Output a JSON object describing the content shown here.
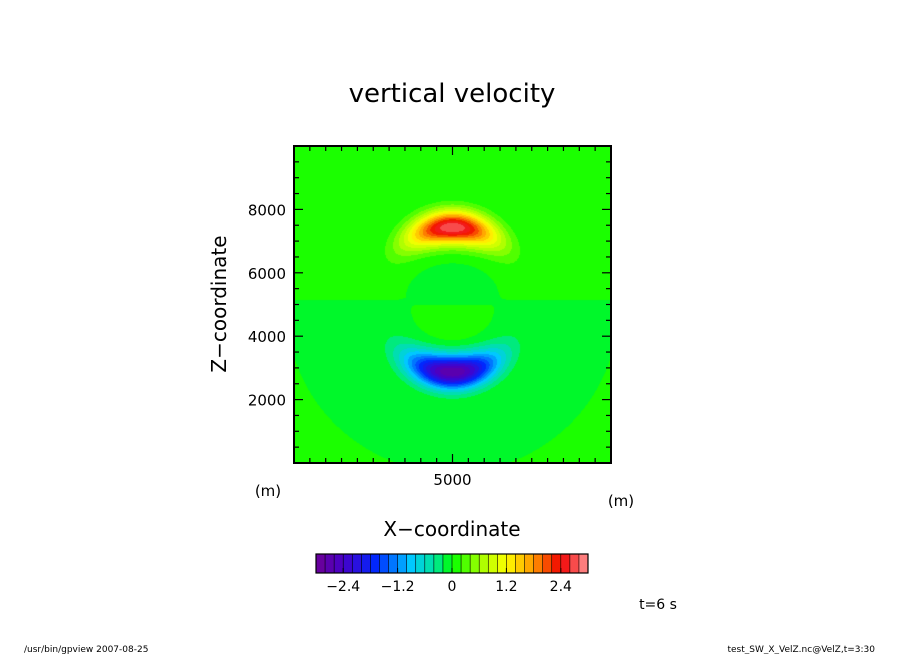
{
  "chart_data": {
    "type": "heatmap",
    "title": "vertical velocity",
    "xlabel": "X−coordinate",
    "ylabel": "Z−coordinate",
    "x_unit": "(m)",
    "y_unit": "(m)",
    "xlim": [
      0,
      10000
    ],
    "ylim": [
      0,
      10000
    ],
    "x_ticks": [
      5000
    ],
    "y_ticks": [
      2000,
      4000,
      6000,
      8000
    ],
    "features": [
      {
        "name": "updraft",
        "x": 5000,
        "z": 7400,
        "value": 2.8
      },
      {
        "name": "downdraft",
        "x": 5000,
        "z": 2900,
        "value": -2.8
      }
    ],
    "colorbar": {
      "min": -3.0,
      "max": 3.0,
      "step": 0.2,
      "ticks": [
        -2.4,
        -1.2,
        0,
        1.2,
        2.4
      ],
      "tick_labels": [
        "−2.4",
        "−1.2",
        "0",
        "1.2",
        "2.4"
      ]
    },
    "time_label": "t=6 s"
  },
  "footer": {
    "left": "/usr/bin/gpview   2007-08-25",
    "right": "test_SW_X_VelZ.nc@VelZ,t=3:30"
  }
}
